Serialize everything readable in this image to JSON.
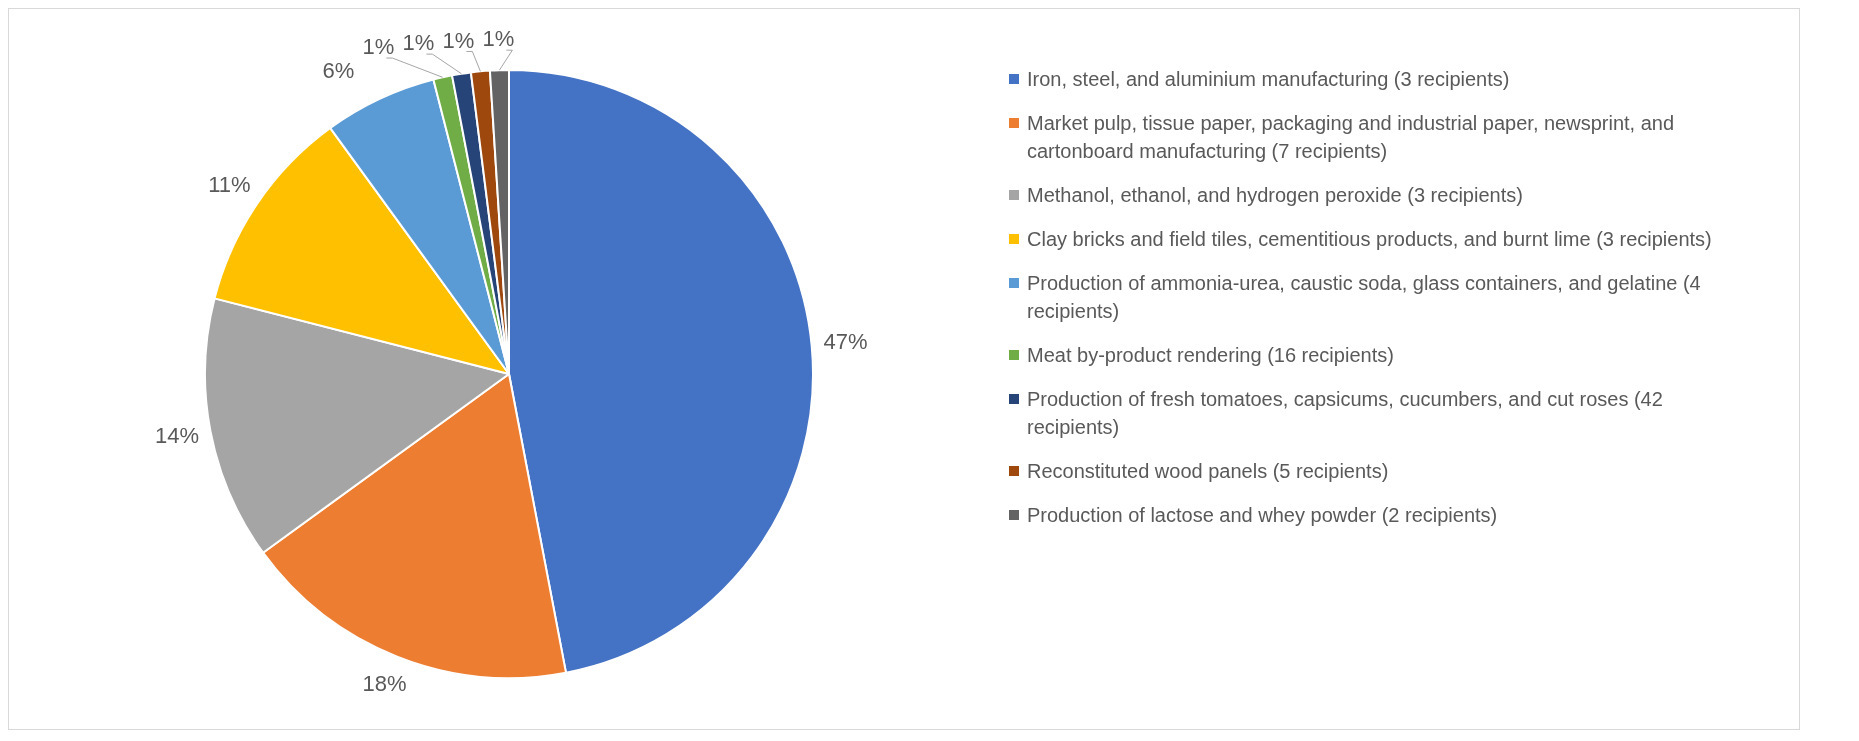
{
  "chart_data": {
    "type": "pie",
    "categories": [
      "Iron, steel, and aluminium manufacturing (3 recipients)",
      "Market pulp, tissue paper, packaging and industrial paper, newsprint, and cartonboard manufacturing (7 recipients)",
      "Methanol, ethanol, and hydrogen peroxide (3 recipients)",
      "Clay bricks and field tiles, cementitious products, and burnt lime (3 recipients)",
      "Production of ammonia-urea, caustic soda, glass containers, and gelatine (4 recipients)",
      "Meat by-product rendering (16 recipients)",
      "Production of fresh tomatoes, capsicums, cucumbers, and cut roses (42 recipients)",
      "Reconstituted wood panels (5 recipients)",
      "Production of lactose and whey powder (2 recipients)"
    ],
    "values": [
      47,
      18,
      14,
      11,
      6,
      1,
      1,
      1,
      1
    ],
    "colors": [
      "#4472c4",
      "#ed7d31",
      "#a5a5a5",
      "#ffc000",
      "#5b9bd5",
      "#70ad47",
      "#264478",
      "#9e480e",
      "#636363"
    ],
    "value_labels": [
      "47%",
      "18%",
      "14%",
      "11%",
      "6%",
      "1%",
      "1%",
      "1%",
      "1%"
    ],
    "legend": "right"
  }
}
